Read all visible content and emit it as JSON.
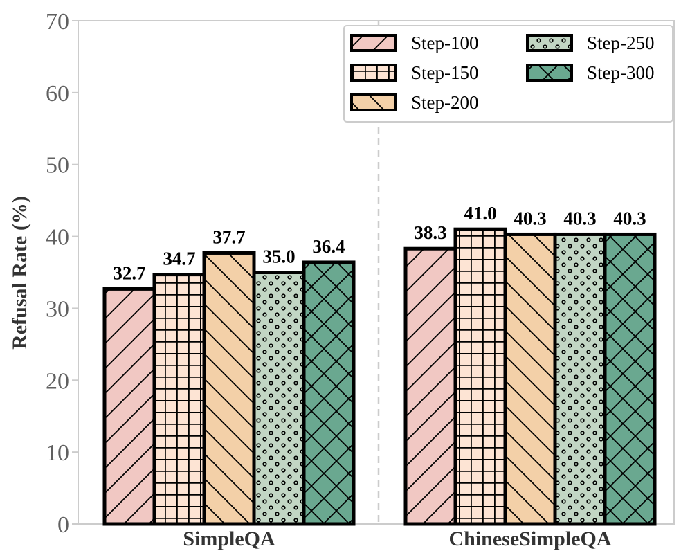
{
  "chart_data": {
    "type": "bar",
    "title": "",
    "xlabel": "",
    "ylabel": "Refusal Rate (%)",
    "ylim": [
      0,
      70
    ],
    "yticks": [
      0,
      10,
      20,
      30,
      40,
      50,
      60,
      70
    ],
    "categories": [
      "SimpleQA",
      "ChineseSimpleQA"
    ],
    "series": [
      {
        "name": "Step-100",
        "values": [
          32.7,
          38.3
        ],
        "color": "#f1c8c3",
        "hatch": "slash"
      },
      {
        "name": "Step-150",
        "values": [
          34.7,
          41.0
        ],
        "color": "#fde4d4",
        "hatch": "grid"
      },
      {
        "name": "Step-200",
        "values": [
          37.7,
          40.3
        ],
        "color": "#f3d0a8",
        "hatch": "backslash"
      },
      {
        "name": "Step-250",
        "values": [
          35.0,
          40.3
        ],
        "color": "#c2d6c4",
        "hatch": "dots"
      },
      {
        "name": "Step-300",
        "values": [
          36.4,
          40.3
        ],
        "color": "#6aa890",
        "hatch": "cross"
      }
    ],
    "data_labels": [
      [
        "32.7",
        "38.3"
      ],
      [
        "34.7",
        "41.0"
      ],
      [
        "37.7",
        "40.3"
      ],
      [
        "35.0",
        "40.3"
      ],
      [
        "36.4",
        "40.3"
      ]
    ],
    "legend_position": "top-right",
    "legend_columns": 2,
    "separator": "dashed vertical line between groups",
    "grid": false
  }
}
